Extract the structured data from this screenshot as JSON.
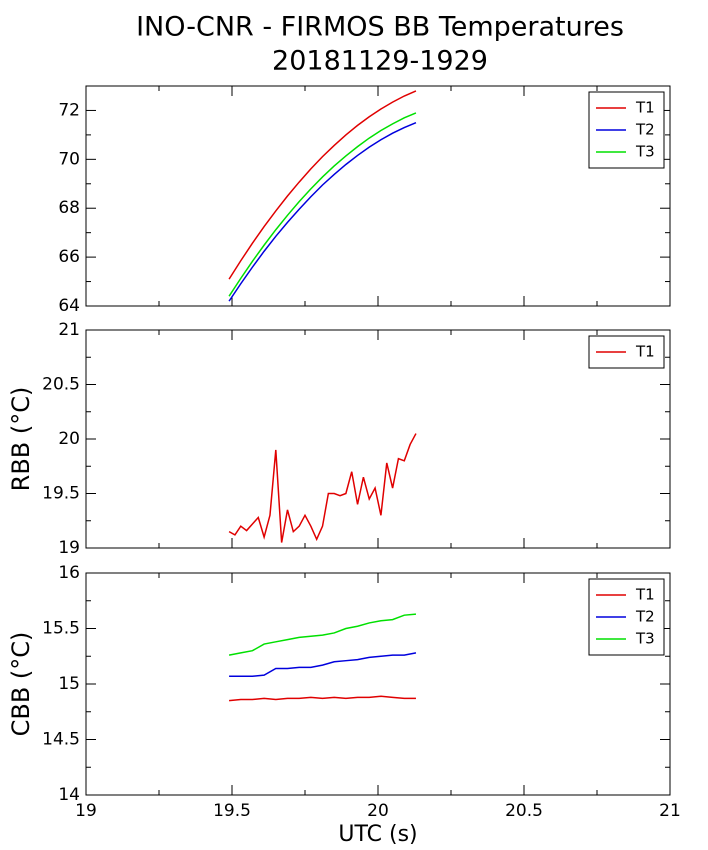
{
  "chart_data": [
    {
      "type": "line",
      "title": "INO-CNR - FIRMOS BB Temperatures",
      "subtitle": "20181129-1929",
      "x": [
        19.49,
        19.53,
        19.57,
        19.61,
        19.65,
        19.69,
        19.73,
        19.77,
        19.81,
        19.85,
        19.89,
        19.93,
        19.97,
        20.01,
        20.05,
        20.09,
        20.13
      ],
      "series": [
        {
          "name": "T1",
          "color": "#e00000",
          "values": [
            65.1,
            65.85,
            66.57,
            67.25,
            67.89,
            68.5,
            69.07,
            69.61,
            70.11,
            70.57,
            71.0,
            71.39,
            71.74,
            72.06,
            72.34,
            72.59,
            72.8
          ]
        },
        {
          "name": "T2",
          "color": "#0000dd",
          "values": [
            64.2,
            64.91,
            65.59,
            66.24,
            66.85,
            67.42,
            67.96,
            68.47,
            68.95,
            69.38,
            69.79,
            70.16,
            70.5,
            70.8,
            71.07,
            71.3,
            71.5
          ]
        },
        {
          "name": "T3",
          "color": "#00e000",
          "values": [
            64.4,
            65.13,
            65.83,
            66.49,
            67.12,
            67.71,
            68.27,
            68.79,
            69.28,
            69.73,
            70.14,
            70.52,
            70.87,
            71.18,
            71.45,
            71.7,
            71.9
          ]
        }
      ],
      "xlim": [
        19,
        21
      ],
      "xticks": [
        19,
        19.5,
        20,
        20.5,
        21
      ],
      "ylim": [
        64,
        73
      ],
      "yticks": [
        64,
        66,
        68,
        70,
        72
      ],
      "legend": "upper right"
    },
    {
      "type": "line",
      "ylabel": "RBB (°C)",
      "x": [
        19.49,
        19.51,
        19.53,
        19.55,
        19.57,
        19.59,
        19.61,
        19.63,
        19.65,
        19.67,
        19.69,
        19.71,
        19.73,
        19.75,
        19.77,
        19.79,
        19.81,
        19.83,
        19.85,
        19.87,
        19.89,
        19.91,
        19.93,
        19.95,
        19.97,
        19.99,
        20.01,
        20.03,
        20.05,
        20.07,
        20.09,
        20.11,
        20.13
      ],
      "series": [
        {
          "name": "T1",
          "color": "#e00000",
          "values": [
            19.15,
            19.12,
            19.2,
            19.16,
            19.22,
            19.28,
            19.1,
            19.3,
            19.9,
            19.05,
            19.35,
            19.15,
            19.2,
            19.3,
            19.2,
            19.08,
            19.2,
            19.5,
            19.5,
            19.48,
            19.5,
            19.7,
            19.4,
            19.65,
            19.45,
            19.55,
            19.3,
            19.78,
            19.55,
            19.82,
            19.8,
            19.95,
            20.05
          ]
        }
      ],
      "xlim": [
        19,
        21
      ],
      "xticks": [
        19,
        19.5,
        20,
        20.5,
        21
      ],
      "ylim": [
        19,
        21
      ],
      "yticks": [
        19,
        19.5,
        20,
        20.5,
        21
      ],
      "legend": "upper right"
    },
    {
      "type": "line",
      "ylabel": "CBB (°C)",
      "xlabel": "UTC (s)",
      "x": [
        19.49,
        19.53,
        19.57,
        19.61,
        19.65,
        19.69,
        19.73,
        19.77,
        19.81,
        19.85,
        19.89,
        19.93,
        19.97,
        20.01,
        20.05,
        20.09,
        20.13
      ],
      "series": [
        {
          "name": "T1",
          "color": "#e00000",
          "values": [
            14.85,
            14.86,
            14.86,
            14.87,
            14.86,
            14.87,
            14.87,
            14.88,
            14.87,
            14.88,
            14.87,
            14.88,
            14.88,
            14.89,
            14.88,
            14.87,
            14.87
          ]
        },
        {
          "name": "T2",
          "color": "#0000dd",
          "values": [
            15.07,
            15.07,
            15.07,
            15.08,
            15.14,
            15.14,
            15.15,
            15.15,
            15.17,
            15.2,
            15.21,
            15.22,
            15.24,
            15.25,
            15.26,
            15.26,
            15.28
          ]
        },
        {
          "name": "T3",
          "color": "#00e000",
          "values": [
            15.26,
            15.28,
            15.3,
            15.36,
            15.38,
            15.4,
            15.42,
            15.43,
            15.44,
            15.46,
            15.5,
            15.52,
            15.55,
            15.57,
            15.58,
            15.62,
            15.63
          ]
        }
      ],
      "xlim": [
        19,
        21
      ],
      "xticks": [
        19,
        19.5,
        20,
        20.5,
        21
      ],
      "ylim": [
        14,
        16
      ],
      "yticks": [
        14,
        14.5,
        15,
        15.5,
        16
      ],
      "legend": "upper right"
    }
  ]
}
